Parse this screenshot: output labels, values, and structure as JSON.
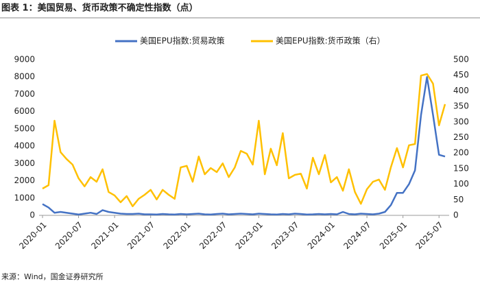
{
  "chart_data": {
    "type": "line",
    "title": "图表 1：美国贸易、货币政策不确定性指数（点）",
    "source": "来源：Wind，国金证券研究所",
    "categories": [
      "2020-01",
      null,
      null,
      null,
      null,
      null,
      "2020-07",
      null,
      null,
      null,
      null,
      null,
      "2021-01",
      null,
      null,
      null,
      null,
      null,
      "2021-07",
      null,
      null,
      null,
      null,
      null,
      "2022-01",
      null,
      null,
      null,
      null,
      null,
      "2022-07",
      null,
      null,
      null,
      null,
      null,
      "2023-01",
      null,
      null,
      null,
      null,
      null,
      "2023-07",
      null,
      null,
      null,
      null,
      null,
      "2024-01",
      null,
      null,
      null,
      null,
      null,
      "2024-07",
      null,
      null,
      null,
      null,
      null,
      "2025-01",
      null,
      null,
      null,
      null,
      null,
      "2025-07",
      null
    ],
    "series": [
      {
        "name": "美国EPU指数:贸易政策",
        "color": "#4472c4",
        "axis": "y",
        "values": [
          650,
          450,
          150,
          200,
          150,
          100,
          50,
          100,
          150,
          80,
          300,
          200,
          150,
          100,
          80,
          80,
          100,
          60,
          60,
          50,
          80,
          60,
          50,
          80,
          60,
          80,
          100,
          60,
          50,
          80,
          100,
          60,
          80,
          100,
          80,
          60,
          100,
          80,
          60,
          50,
          80,
          60,
          100,
          80,
          50,
          60,
          80,
          60,
          80,
          60,
          200,
          80,
          60,
          100,
          80,
          60,
          100,
          200,
          600,
          1300,
          1300,
          1800,
          2600,
          5800,
          8000,
          5800,
          3500,
          3400
        ]
      },
      {
        "name": "美国EPU指数:货币政策（右）",
        "color": "#ffc000",
        "axis": "y2",
        "values": [
          86,
          97,
          304,
          203,
          181,
          163,
          119,
          93,
          123,
          108,
          148,
          75,
          64,
          42,
          62,
          29,
          53,
          66,
          82,
          51,
          82,
          66,
          53,
          154,
          159,
          108,
          189,
          132,
          152,
          139,
          167,
          123,
          154,
          207,
          198,
          163,
          304,
          132,
          214,
          161,
          264,
          119,
          130,
          134,
          86,
          185,
          132,
          194,
          106,
          123,
          79,
          148,
          75,
          37,
          84,
          108,
          115,
          82,
          155,
          216,
          154,
          225,
          229,
          449,
          454,
          423,
          289,
          357
        ]
      }
    ],
    "ylim": [
      0,
      9000
    ],
    "yticks": [
      0,
      1000,
      2000,
      3000,
      4000,
      5000,
      6000,
      7000,
      8000,
      9000
    ],
    "y2lim": [
      0,
      500
    ],
    "y2ticks": [
      0,
      50,
      100,
      150,
      200,
      250,
      300,
      350,
      400,
      450,
      500
    ],
    "legend": "top",
    "grid": false
  }
}
